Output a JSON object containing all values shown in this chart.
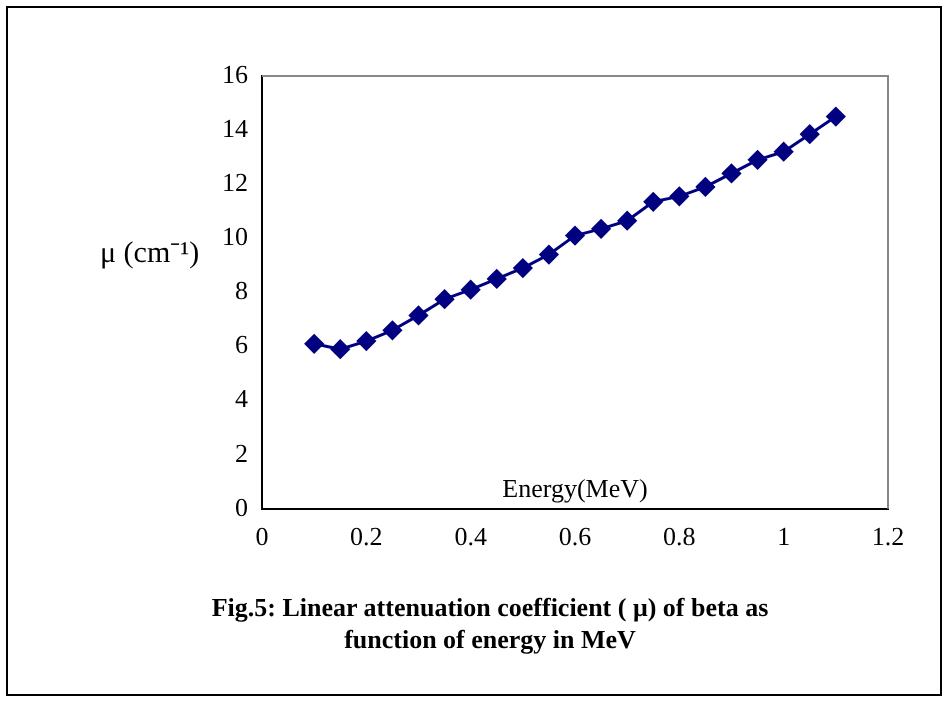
{
  "chart_data": {
    "type": "line",
    "title": "Fig.5: Linear attenuation coefficient ( μ) of beta as function of energy in MeV",
    "xlabel": "Energy(MeV)",
    "ylabel": "μ (cm⁻¹)",
    "x": [
      0.1,
      0.15,
      0.2,
      0.25,
      0.3,
      0.35,
      0.4,
      0.45,
      0.5,
      0.55,
      0.6,
      0.65,
      0.7,
      0.75,
      0.8,
      0.85,
      0.9,
      0.95,
      1.0,
      1.05,
      1.1
    ],
    "series": [
      {
        "color": "#000080",
        "values": [
          6.1,
          5.9,
          6.2,
          6.6,
          7.15,
          7.75,
          8.1,
          8.5,
          8.9,
          9.4,
          10.1,
          10.35,
          10.65,
          11.35,
          11.55,
          11.9,
          12.4,
          12.9,
          13.2,
          13.85,
          14.5
        ]
      }
    ],
    "xlim": [
      0,
      1.2
    ],
    "xticks": [
      0,
      0.2,
      0.4,
      0.6,
      0.8,
      1,
      1.2
    ],
    "ylim": [
      0,
      16
    ],
    "yticks": [
      0,
      2,
      4,
      6,
      8,
      10,
      12,
      14,
      16
    ],
    "grid": false,
    "legend": false,
    "marker": "diamond",
    "line_style": "solid"
  }
}
